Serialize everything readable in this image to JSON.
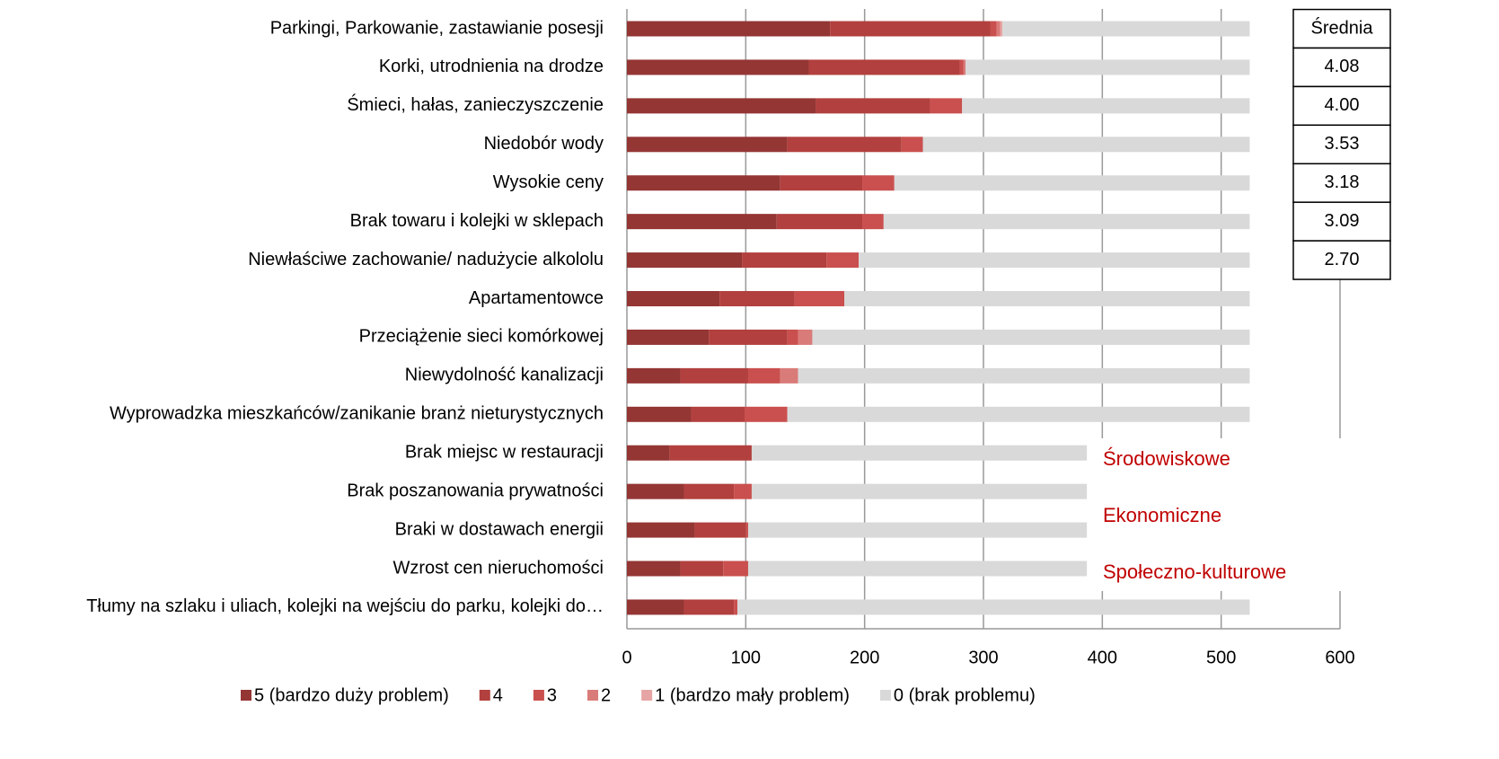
{
  "chart_data": {
    "type": "stacked_bar_horizontal",
    "categories": [
      "Parkingi, Parkowanie, zastawianie posesji",
      "Korki, utrodnienia na drodze",
      "Śmieci, hałas, zanieczyszczenie",
      "Niedobór wody",
      "Wysokie ceny",
      "Brak towaru i kolejki w sklepach",
      "Niewłaściwe zachowanie/ nadużycie alkololu",
      "Apartamentowce",
      "Przeciążenie sieci komórkowej",
      "Niewydolność kanalizacji",
      "Wyprowadzka mieszkańców/zanikanie branż nieturystycznych",
      "Brak miejsc w restauracji",
      "Brak poszanowania prywatności",
      "Braki w dostawach energii",
      "Wzrost cen nieruchomości",
      "Tłumy na szlaku i uliach, kolejki na wejściu do parku, kolejki do…"
    ],
    "series": [
      {
        "name": "5 (bardzo duży problem)",
        "color": "#943634",
        "values": [
          171,
          153,
          159,
          135,
          129,
          126,
          97,
          78,
          69,
          45,
          54,
          36,
          48,
          57,
          45,
          48
        ]
      },
      {
        "name": "4",
        "color": "#b2403e",
        "values": [
          135,
          127,
          96,
          96,
          69,
          72,
          71,
          63,
          66,
          57,
          45,
          69,
          42,
          43,
          36,
          42
        ]
      },
      {
        "name": "3",
        "color": "#c9504e",
        "values": [
          5,
          3,
          27,
          18,
          27,
          18,
          27,
          42,
          9,
          27,
          36,
          0,
          15,
          2,
          21,
          3
        ]
      },
      {
        "name": "2",
        "color": "#d97b79",
        "values": [
          3,
          2,
          0,
          0,
          0,
          0,
          0,
          0,
          12,
          15,
          0,
          0,
          0,
          0,
          0,
          0
        ]
      },
      {
        "name": "1 (bardzo mały problem)",
        "color": "#e6a5a4",
        "values": [
          2,
          0,
          0,
          0,
          0,
          0,
          0,
          0,
          0,
          0,
          0,
          0,
          0,
          0,
          0,
          0
        ]
      },
      {
        "name": "0 (brak problemu)",
        "color": "#d9d9d9",
        "values": [
          208,
          239,
          242,
          275,
          299,
          308,
          329,
          341,
          368,
          380,
          389,
          282,
          282,
          285,
          285,
          431
        ]
      }
    ],
    "xlim": [
      0,
      600
    ],
    "xticks": [
      0,
      100,
      200,
      300,
      400,
      500,
      600
    ],
    "grid": true,
    "mean_table": {
      "header": "Średnia",
      "values": [
        "4.08",
        "4.00",
        "3.53",
        "3.18",
        "3.09",
        "2.70"
      ]
    },
    "annotations": [
      "Środowiskowe",
      "Ekonomiczne",
      "Społeczno-kulturowe"
    ],
    "legend": "bottom"
  }
}
